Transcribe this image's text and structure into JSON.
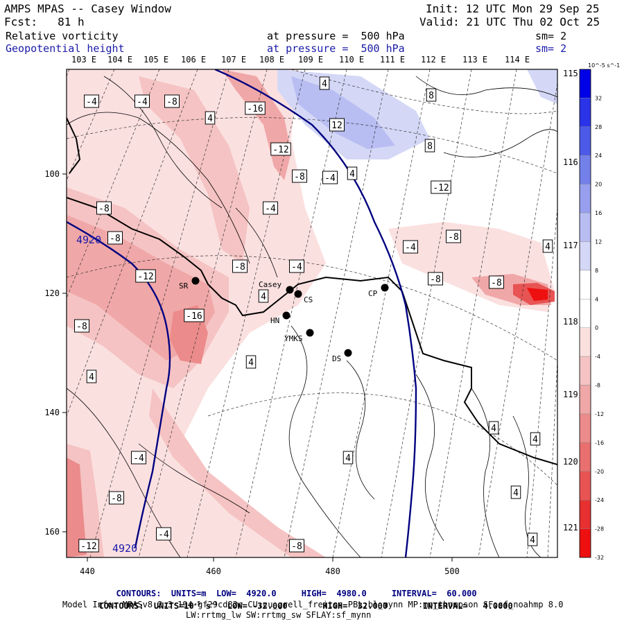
{
  "header": {
    "title": "AMPS MPAS -- Casey Window",
    "init": "Init: 12 UTC Mon 29 Sep 25",
    "fcst": "Fcst:   81 h",
    "valid": "Valid: 21 UTC Thu 02 Oct 25",
    "field1_name": "Relative vorticity",
    "field1_level": "at pressure =  500 hPa",
    "field1_sm": "sm= 2",
    "field2_name": "Geopotential height",
    "field2_level": "at pressure =  500 hPa",
    "field2_sm": "sm= 2"
  },
  "top_longitudes": [
    "103 E",
    "104 E",
    "105 E",
    "106 E",
    "107 E",
    "108 E",
    "109 E",
    "110 E",
    "111 E",
    "112 E",
    "113 E",
    "114 E"
  ],
  "right_longitudes": [
    "115 E",
    "116 E",
    "117 E",
    "118 E",
    "119 E",
    "120 E",
    "121 E"
  ],
  "x_ticks": [
    "440",
    "460",
    "480",
    "500"
  ],
  "y_ticks": [
    "100",
    "120",
    "140",
    "160"
  ],
  "stations": [
    {
      "code": "SR"
    },
    {
      "code": "Casey"
    },
    {
      "code": "CS"
    },
    {
      "code": "HN"
    },
    {
      "code": "YMKS"
    },
    {
      "code": "DS"
    },
    {
      "code": "CP"
    }
  ],
  "vorticity_labels": [
    "-4",
    "-4",
    "-8",
    "-16",
    "4",
    "4",
    "12",
    "8",
    "8",
    "-12",
    "-8",
    "-4",
    "4",
    "-8",
    "-4",
    "-12",
    "-8",
    "-4",
    "4",
    "-8",
    "-8",
    "-12",
    "-16",
    "-4",
    "-8",
    "-8",
    "4",
    "-8",
    "4",
    "4",
    "-4",
    "4",
    "4",
    "-8",
    "4",
    "-12",
    "-4",
    "-8",
    "4",
    "4"
  ],
  "height_labels": [
    "4920",
    "4920"
  ],
  "colorbar": {
    "unit": "10^-5 s^-1",
    "levels": [
      "32",
      "28",
      "24",
      "20",
      "16",
      "12",
      "8",
      "4",
      "0",
      "-4",
      "-8",
      "-12",
      "-16",
      "-20",
      "-24",
      "-28",
      "-32"
    ],
    "colors": [
      "#0000e6",
      "#2a33e8",
      "#4d5ae8",
      "#7480ea",
      "#979fee",
      "#b8bdf2",
      "#d4d8f6",
      "#ffffff",
      "#ffffff",
      "#fbe0e0",
      "#f5c3c3",
      "#f0a7a7",
      "#ec8b8b",
      "#ea6f6f",
      "#e85353",
      "#e83030",
      "#ee1010"
    ]
  },
  "colors": {
    "height_contour": "#000080",
    "coast": "#000000",
    "neg_light": "#fbe0e0",
    "neg_mid": "#f5c3c3",
    "neg_strong": "#f0a7a7",
    "neg_deep": "#ec8b8b",
    "neg_max": "#e85353",
    "pos_light": "#d4d8f6",
    "pos_mid": "#b8bdf2"
  },
  "footer": {
    "line1_a": "CONTOURS:  UNITS=m  LOW=  4920.0",
    "line1_b": "HIGH=  4980.0",
    "line1_c": "INTERVAL=  60.000",
    "line2_a": "CONTOURS:  UNITS=10",
    "line2_exp": "-5",
    "line2_b": " s",
    "line2_exp2": "-1",
    "line2_c": "  LOW= -32.000",
    "line2_d": "HIGH=  32.000",
    "line2_e": "INTERVAL=   4.0000",
    "model_info": "Model Info: MPASv8.2.3-194-gf29cd82c CU:cu_grell_freitas PBL:bl_mynn MP:mp_thompson SF:sf_noahmp 8.0",
    "model_info2": "LW:rrtmg_lw SW:rrtmg_sw SFLAY:sf_mynn"
  }
}
